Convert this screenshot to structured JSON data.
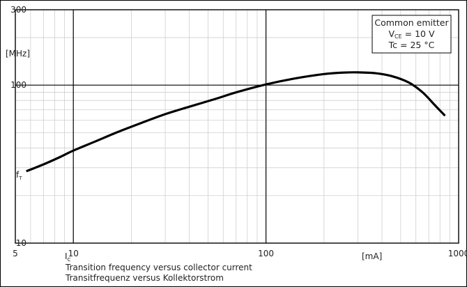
{
  "chart_data": {
    "type": "line",
    "title": "",
    "xlabel": "I_C",
    "ylabel": "f_T",
    "x_unit": "[mA]",
    "y_unit": "[MHz]",
    "xscale": "log",
    "yscale": "log",
    "xlim": [
      5,
      1000
    ],
    "ylim": [
      10,
      300
    ],
    "x_ticks": [
      "5",
      "10",
      "100",
      "1000"
    ],
    "y_ticks": [
      "10",
      "100",
      "300"
    ],
    "grid": true,
    "legend_box": {
      "line1": "Common emitter",
      "line2_prefix": "V",
      "line2_sub": "CE",
      "line2_suffix": " = 10 V",
      "line3": "Tc = 25 °C",
      "placement": "top-right"
    },
    "captions": [
      "Transition frequency versus collector current",
      "Transitfrequenz versus Kollektorstrom"
    ],
    "series": [
      {
        "x": [
          5.7,
          7,
          8.5,
          10,
          13,
          17,
          22,
          30,
          40,
          55,
          70,
          100,
          140,
          200,
          250,
          300,
          370,
          450,
          550,
          650,
          750,
          850
        ],
        "y": [
          28.5,
          31.5,
          35,
          38.5,
          44,
          50.5,
          57,
          65.5,
          73,
          82,
          90,
          101,
          110,
          117.5,
          120,
          120.5,
          119,
          114,
          104,
          90,
          75,
          64
        ]
      }
    ]
  }
}
